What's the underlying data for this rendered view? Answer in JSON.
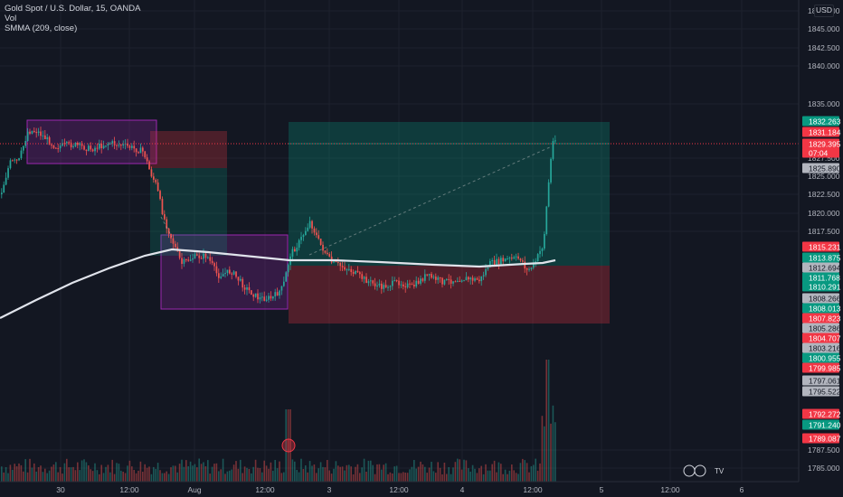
{
  "legend": {
    "symbol": "Gold Spot / U.S. Dollar, 15, OANDA",
    "volume": "Vol",
    "indicator": "SMMA (209, close)"
  },
  "currency_label": "USD",
  "colors": {
    "background": "#131722",
    "up": "#26a69a",
    "down": "#ef5350",
    "smma": "#e0e3eb",
    "current_price": "#f23645",
    "zone_purple": "#9c27b0",
    "target_zone": "#089981",
    "stop_zone": "#f23645"
  },
  "price_axis": {
    "ticks": [
      "1850.000",
      "1845.000",
      "1842.500",
      "1840.000",
      "1835.000",
      "1827.500",
      "1825.000",
      "1822.500",
      "1820.000",
      "1817.500",
      "1787.500",
      "1785.000"
    ],
    "labels": [
      {
        "text": "1832.263",
        "kind": "green"
      },
      {
        "text": "1831.184",
        "kind": "red"
      },
      {
        "text": "1829.395",
        "kind": "red"
      },
      {
        "text": "07:04",
        "kind": "red"
      },
      {
        "text": "1825.890",
        "kind": "gray"
      },
      {
        "text": "1815.231",
        "kind": "red"
      },
      {
        "text": "1813.875",
        "kind": "green"
      },
      {
        "text": "1812.694",
        "kind": "gray"
      },
      {
        "text": "1811.768",
        "kind": "green"
      },
      {
        "text": "1810.291",
        "kind": "green"
      },
      {
        "text": "1808.266",
        "kind": "gray"
      },
      {
        "text": "1808.013",
        "kind": "green"
      },
      {
        "text": "1807.823",
        "kind": "red"
      },
      {
        "text": "1805.286",
        "kind": "gray"
      },
      {
        "text": "1804.707",
        "kind": "red"
      },
      {
        "text": "1803.216",
        "kind": "gray"
      },
      {
        "text": "1800.955",
        "kind": "green"
      },
      {
        "text": "1799.985",
        "kind": "red"
      },
      {
        "text": "1797.061",
        "kind": "gray"
      },
      {
        "text": "1795.522",
        "kind": "gray"
      },
      {
        "text": "1792.272",
        "kind": "red"
      },
      {
        "text": "1791.240",
        "kind": "green"
      },
      {
        "text": "1789.087",
        "kind": "red"
      }
    ]
  },
  "time_axis": {
    "labels": [
      "30",
      "12:00",
      "Aug",
      "12:00",
      "3",
      "12:00",
      "4",
      "12:00",
      "5",
      "12:00",
      "6"
    ]
  },
  "watermark": "TV"
}
